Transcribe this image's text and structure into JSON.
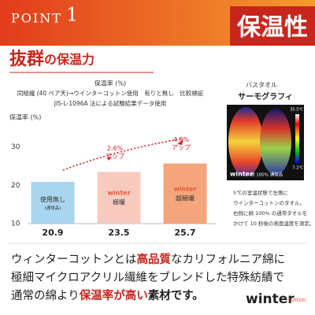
{
  "header": {
    "point": "POINT",
    "number": "1",
    "badge": "保温性"
  },
  "heading": {
    "strong": "抜群",
    "rest": "の保温力"
  },
  "chart_data": {
    "type": "bar",
    "title": "保温率 (%)",
    "subtitle": [
      "同組織 (40 ペア天)→ウインターコットン使用　有りと無し　比較検証",
      "JIS-L-1096A 法による試験結果データ使用"
    ],
    "y_label": "保温率 (%)",
    "categories": [
      "使用無し",
      "極暖",
      "超極暖"
    ],
    "category_notes": [
      "(通常品)",
      null,
      null
    ],
    "values": [
      20.9,
      23.5,
      25.7
    ],
    "colors": [
      "#a9d5ef",
      "#f7cbbf",
      "#f4a57c"
    ],
    "ylim": [
      10,
      33
    ],
    "yticks": [
      10,
      20,
      30
    ],
    "grid": false,
    "annotations": [
      null,
      {
        "value": "2.6%",
        "text": "アップ"
      },
      {
        "value": "4.8%",
        "text": "アップ"
      }
    ]
  },
  "logo": {
    "word": "winter",
    "sub": "cotton"
  },
  "thermo": {
    "label": "バスタオル",
    "title": "サーモグラフィ",
    "max": "35.5℃",
    "min": "7.2℃",
    "right_label": "綿 100% 通常品",
    "caption": [
      "5℃の室温状態で左側に",
      "ウインターコットンのタオル。",
      "右側に綿 100% の通常タオルを",
      "かけて 10 秒後の表面温度を測定。"
    ]
  },
  "body": {
    "line1": [
      "ウィンターコットンとは",
      "高品質",
      "なカリフォルニア綿に"
    ],
    "line2": [
      "極細マイクロアクリル繊維をブレンドした特殊紡績で"
    ],
    "line3": [
      "通常の綿より",
      "保温率が高い",
      "素材です。"
    ]
  }
}
